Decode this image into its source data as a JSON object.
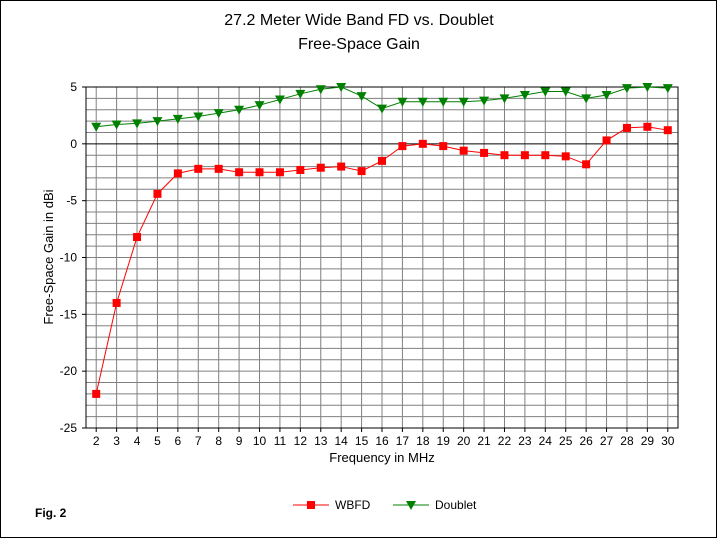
{
  "chart_data": {
    "type": "line",
    "title": "27.2 Meter Wide Band FD vs. Doublet",
    "subtitle": "Free-Space Gain",
    "xlabel": "Frequency in MHz",
    "ylabel": "Free-Space Gain in dBi",
    "x": [
      2,
      3,
      4,
      5,
      6,
      7,
      8,
      9,
      10,
      11,
      12,
      13,
      14,
      15,
      16,
      17,
      18,
      19,
      20,
      21,
      22,
      23,
      24,
      25,
      26,
      27,
      28,
      29,
      30
    ],
    "xlim": [
      2,
      30
    ],
    "ylim": [
      -25,
      5
    ],
    "yticks": [
      5,
      0,
      -5,
      -10,
      -15,
      -20,
      -25
    ],
    "grid": true,
    "legend_position": "bottom-center",
    "series": [
      {
        "name": "WBFD",
        "color": "#ff0000",
        "marker": "square",
        "values": [
          -22.0,
          -14.0,
          -8.2,
          -4.4,
          -2.6,
          -2.2,
          -2.2,
          -2.5,
          -2.5,
          -2.5,
          -2.3,
          -2.1,
          -2.0,
          -2.4,
          -1.5,
          -0.2,
          0.0,
          -0.2,
          -0.6,
          -0.8,
          -1.0,
          -1.0,
          -1.0,
          -1.1,
          -1.8,
          0.3,
          1.4,
          1.5,
          1.2
        ]
      },
      {
        "name": "Doublet",
        "color": "#008000",
        "marker": "triangle-down",
        "values": [
          1.5,
          1.7,
          1.8,
          2.0,
          2.2,
          2.4,
          2.7,
          3.0,
          3.4,
          3.9,
          4.4,
          4.8,
          5.0,
          4.2,
          3.1,
          3.7,
          3.7,
          3.7,
          3.7,
          3.8,
          4.0,
          4.3,
          4.6,
          4.6,
          4.0,
          4.3,
          4.9,
          5.0,
          4.9
        ]
      }
    ],
    "annotation": "Fig. 2"
  }
}
